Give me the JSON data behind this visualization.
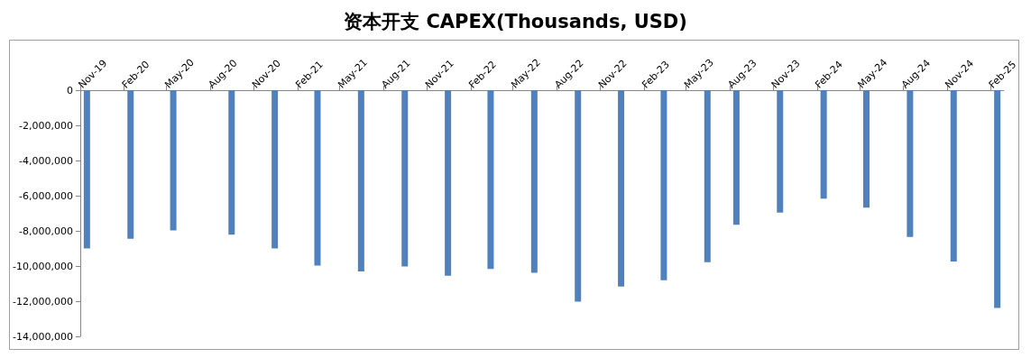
{
  "chart_data": {
    "type": "bar",
    "title": "资本开支 CAPEX(Thousands, USD)",
    "x": [
      "2019-11-15",
      "2020-02-15",
      "2020-05-15",
      "2020-09-15",
      "2020-12-15",
      "2021-03-15",
      "2021-06-15",
      "2021-09-15",
      "2021-12-15",
      "2022-03-15",
      "2022-06-15",
      "2022-09-15",
      "2022-12-15",
      "2023-03-15",
      "2023-06-15",
      "2023-08-15",
      "2023-11-15",
      "2024-02-15",
      "2024-05-15",
      "2024-08-15",
      "2024-11-15",
      "2025-02-15"
    ],
    "values": [
      -9000000,
      -8450000,
      -7980000,
      -8220000,
      -9000000,
      -9980000,
      -10310000,
      -10030000,
      -10550000,
      -10170000,
      -10380000,
      -12020000,
      -11170000,
      -10810000,
      -9780000,
      -7650000,
      -6960000,
      -6170000,
      -6680000,
      -8340000,
      -9740000,
      -12380000
    ],
    "color": "#4f81bd",
    "ylim": [
      -14000000,
      0
    ],
    "yticks": [
      {
        "value": 0,
        "label": "0"
      },
      {
        "value": -2000000,
        "label": "-2,000,000"
      },
      {
        "value": -4000000,
        "label": "-4,000,000"
      },
      {
        "value": -6000000,
        "label": "-6,000,000"
      },
      {
        "value": -8000000,
        "label": "-8,000,000"
      },
      {
        "value": -10000000,
        "label": "-10,000,000"
      },
      {
        "value": -12000000,
        "label": "-12,000,000"
      },
      {
        "value": -14000000,
        "label": "-14,000,000"
      }
    ],
    "xlim": [
      "2019-11-01",
      "2025-03-01"
    ],
    "xticks": [
      {
        "value": "2019-11-01",
        "label": "Nov-19"
      },
      {
        "value": "2020-02-01",
        "label": "Feb-20"
      },
      {
        "value": "2020-05-01",
        "label": "May-20"
      },
      {
        "value": "2020-08-01",
        "label": "Aug-20"
      },
      {
        "value": "2020-11-01",
        "label": "Nov-20"
      },
      {
        "value": "2021-02-01",
        "label": "Feb-21"
      },
      {
        "value": "2021-05-01",
        "label": "May-21"
      },
      {
        "value": "2021-08-01",
        "label": "Aug-21"
      },
      {
        "value": "2021-11-01",
        "label": "Nov-21"
      },
      {
        "value": "2022-02-01",
        "label": "Feb-22"
      },
      {
        "value": "2022-05-01",
        "label": "May-22"
      },
      {
        "value": "2022-08-01",
        "label": "Aug-22"
      },
      {
        "value": "2022-11-01",
        "label": "Nov-22"
      },
      {
        "value": "2023-02-01",
        "label": "Feb-23"
      },
      {
        "value": "2023-05-01",
        "label": "May-23"
      },
      {
        "value": "2023-08-01",
        "label": "Aug-23"
      },
      {
        "value": "2023-11-01",
        "label": "Nov-23"
      },
      {
        "value": "2024-02-01",
        "label": "Feb-24"
      },
      {
        "value": "2024-05-01",
        "label": "May-24"
      },
      {
        "value": "2024-08-01",
        "label": "Aug-24"
      },
      {
        "value": "2024-11-01",
        "label": "Nov-24"
      },
      {
        "value": "2025-02-01",
        "label": "Feb-25"
      }
    ],
    "grid": false
  }
}
